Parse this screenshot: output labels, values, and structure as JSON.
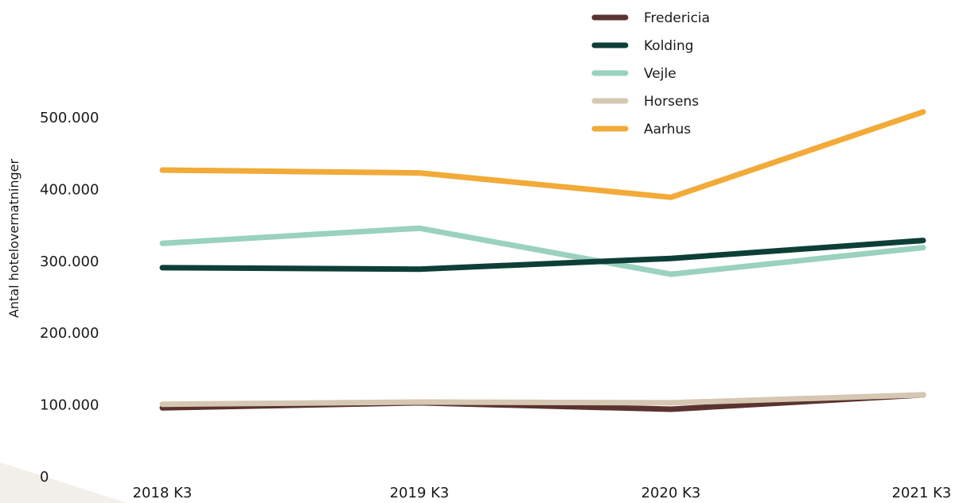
{
  "chart_data": {
    "type": "line",
    "title": "",
    "xlabel": "",
    "ylabel": "Antal hotelovernatninger",
    "categories": [
      "2018 K3",
      "2019 K3",
      "2020 K3",
      "2021 K3"
    ],
    "y_ticks": [
      "0",
      "100.000",
      "200.000",
      "300.000",
      "400.000",
      "500.000"
    ],
    "ylim": [
      0,
      500000
    ],
    "grid": false,
    "legend_position": "top-right",
    "series": [
      {
        "name": "Fredericia",
        "color": "#5a3330",
        "values": [
          96000,
          103000,
          94000,
          114000
        ]
      },
      {
        "name": "Kolding",
        "color": "#0e3f36",
        "values": [
          291000,
          289000,
          304000,
          329000
        ]
      },
      {
        "name": "Vejle",
        "color": "#9ad1bf",
        "values": [
          325000,
          346000,
          282000,
          319000
        ]
      },
      {
        "name": "Horsens",
        "color": "#d6c7b3",
        "values": [
          101000,
          104000,
          103000,
          114000
        ]
      },
      {
        "name": "Aarhus",
        "color": "#f2aa38",
        "values": [
          427000,
          423000,
          389000,
          508000
        ]
      }
    ]
  }
}
